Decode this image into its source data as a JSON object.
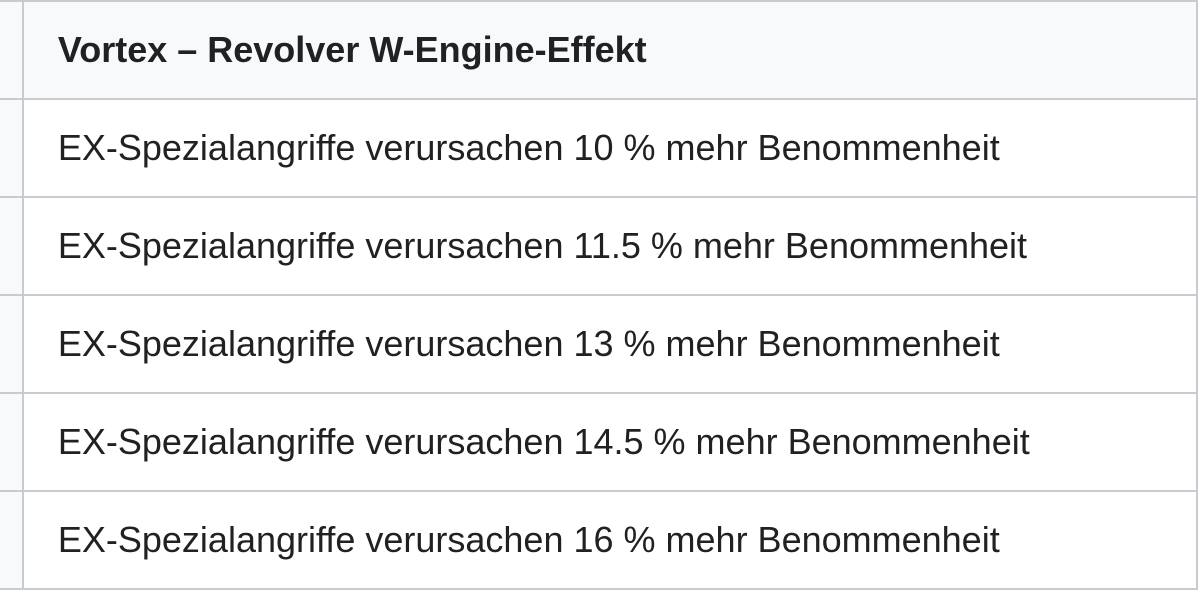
{
  "table": {
    "header": "Vortex – Revolver W-Engine-Effekt",
    "rows": [
      "EX-Spezialangriffe verursachen 10 % mehr Benommenheit",
      "EX-Spezialangriffe verursachen 11.5 % mehr Benommenheit",
      "EX-Spezialangriffe verursachen 13 % mehr Benommenheit",
      "EX-Spezialangriffe verursachen 14.5 % mehr Benommenheit",
      "EX-Spezialangriffe verursachen 16 % mehr Benommenheit"
    ]
  }
}
